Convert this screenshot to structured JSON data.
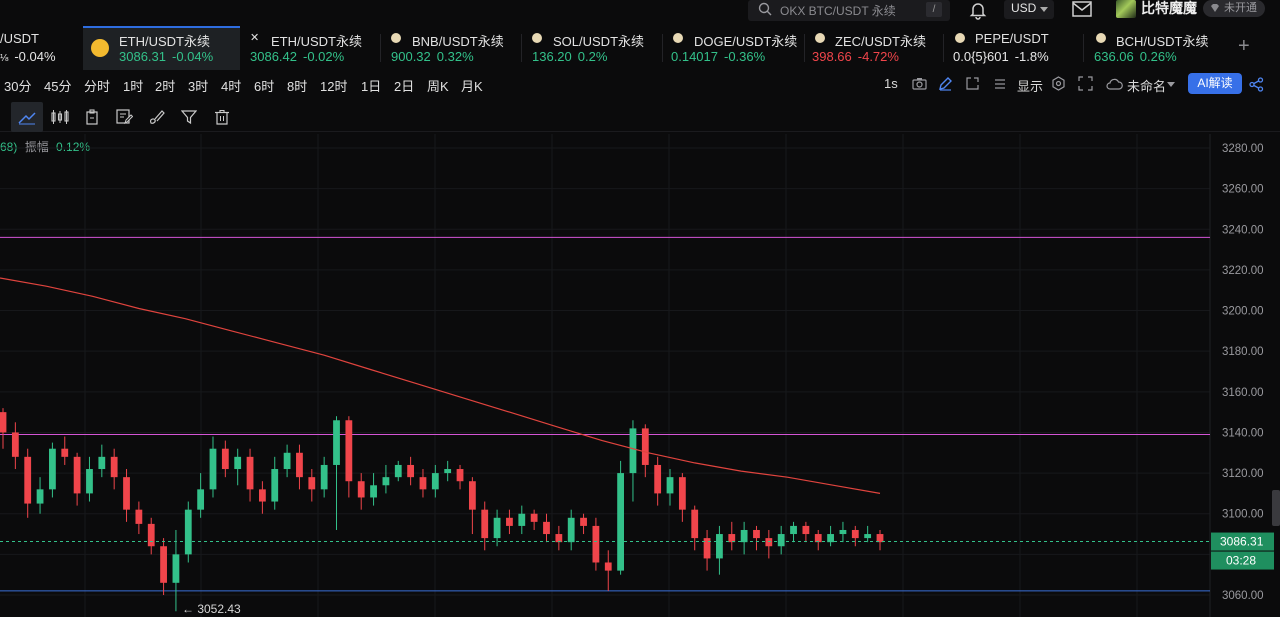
{
  "topbar": {
    "search_placeholder": "OKX BTC/USDT 永续",
    "search_shortcut": "/",
    "currency": "USD",
    "username": "比特魔魔",
    "vip_label": "未开通"
  },
  "tabs": [
    {
      "symbol": "/USDT",
      "price": "",
      "change": "-0.04%",
      "price_dir": "",
      "change_dir": "white"
    },
    {
      "symbol": "ETH/USDT永续",
      "price": "3086.31",
      "change": "-0.04%",
      "price_dir": "up",
      "change_dir": "up",
      "active": true
    },
    {
      "symbol": "ETH/USDT永续",
      "price": "3086.42",
      "change": "-0.02%",
      "price_dir": "up",
      "change_dir": "up"
    },
    {
      "symbol": "BNB/USDT永续",
      "price": "900.32",
      "change": "0.32%",
      "price_dir": "up",
      "change_dir": "up"
    },
    {
      "symbol": "SOL/USDT永续",
      "price": "136.20",
      "change": "0.2%",
      "price_dir": "up",
      "change_dir": "up"
    },
    {
      "symbol": "DOGE/USDT永续",
      "price": "0.14017",
      "change": "-0.36%",
      "price_dir": "up",
      "change_dir": "up"
    },
    {
      "symbol": "ZEC/USDT永续",
      "price": "398.66",
      "change": "-4.72%",
      "price_dir": "down",
      "change_dir": "down"
    },
    {
      "symbol": "PEPE/USDT",
      "price": "0.0{5}601",
      "change": "-1.8%",
      "price_dir": "white",
      "change_dir": "white"
    },
    {
      "symbol": "BCH/USDT永续",
      "price": "636.06",
      "change": "0.26%",
      "price_dir": "up",
      "change_dir": "up"
    }
  ],
  "intervals": [
    "30分",
    "45分",
    "分时",
    "1时",
    "2时",
    "3时",
    "4时",
    "6时",
    "8时",
    "12时",
    "1日",
    "2日",
    "周K",
    "月K"
  ],
  "controls": {
    "speed": "1s",
    "display": "显示",
    "layout_name": "未命名",
    "ai_button": "AI解读"
  },
  "stats": {
    "prefix": "68)",
    "amplitude_label": "振幅",
    "amplitude_value": "0.12%"
  },
  "chart_data": {
    "type": "candlestick",
    "y_ticks": [
      "3280.00",
      "3260.00",
      "3240.00",
      "3220.00",
      "3200.00",
      "3180.00",
      "3160.00",
      "3140.00",
      "3120.00",
      "3100.00",
      "3060.00"
    ],
    "ylim": [
      3052,
      3284
    ],
    "current_price": "3086.31",
    "countdown": "03:28",
    "low_label": "3052.43",
    "horizontal_lines": [
      {
        "value": 3236,
        "color": "#d455d6"
      },
      {
        "value": 3139,
        "color": "#d455d6"
      },
      {
        "value": 3062,
        "color": "#3a6fd8"
      }
    ],
    "moving_average": {
      "color": "#e0443e",
      "values": [
        3216,
        3212,
        3207,
        3201,
        3196,
        3190,
        3184,
        3178,
        3171,
        3164,
        3157,
        3150,
        3143,
        3136,
        3130,
        3125,
        3121,
        3118,
        3114,
        3110
      ]
    },
    "colors": {
      "up": "#33c18a",
      "down": "#f0454b"
    },
    "candles": [
      [
        3150,
        3140,
        3152,
        3132
      ],
      [
        3140,
        3128,
        3145,
        3122
      ],
      [
        3128,
        3105,
        3132,
        3098
      ],
      [
        3105,
        3112,
        3118,
        3100
      ],
      [
        3112,
        3132,
        3135,
        3108
      ],
      [
        3132,
        3128,
        3138,
        3124
      ],
      [
        3128,
        3110,
        3130,
        3104
      ],
      [
        3110,
        3122,
        3128,
        3106
      ],
      [
        3122,
        3128,
        3134,
        3118
      ],
      [
        3128,
        3118,
        3132,
        3112
      ],
      [
        3118,
        3102,
        3122,
        3096
      ],
      [
        3102,
        3095,
        3106,
        3090
      ],
      [
        3095,
        3084,
        3098,
        3080
      ],
      [
        3084,
        3066,
        3088,
        3060
      ],
      [
        3066,
        3080,
        3092,
        3052
      ],
      [
        3080,
        3102,
        3106,
        3076
      ],
      [
        3102,
        3112,
        3120,
        3098
      ],
      [
        3112,
        3132,
        3138,
        3108
      ],
      [
        3132,
        3122,
        3136,
        3118
      ],
      [
        3122,
        3128,
        3132,
        3114
      ],
      [
        3128,
        3112,
        3132,
        3106
      ],
      [
        3112,
        3106,
        3116,
        3100
      ],
      [
        3106,
        3122,
        3128,
        3102
      ],
      [
        3122,
        3130,
        3134,
        3118
      ],
      [
        3130,
        3118,
        3134,
        3112
      ],
      [
        3118,
        3112,
        3122,
        3106
      ],
      [
        3112,
        3124,
        3128,
        3108
      ],
      [
        3124,
        3146,
        3148,
        3092
      ],
      [
        3146,
        3116,
        3148,
        3108
      ],
      [
        3116,
        3108,
        3120,
        3102
      ],
      [
        3108,
        3114,
        3120,
        3104
      ],
      [
        3114,
        3118,
        3124,
        3110
      ],
      [
        3118,
        3124,
        3126,
        3116
      ],
      [
        3124,
        3118,
        3128,
        3114
      ],
      [
        3118,
        3112,
        3122,
        3108
      ],
      [
        3112,
        3120,
        3124,
        3108
      ],
      [
        3120,
        3122,
        3126,
        3116
      ],
      [
        3122,
        3116,
        3124,
        3112
      ],
      [
        3116,
        3102,
        3118,
        3090
      ],
      [
        3102,
        3088,
        3106,
        3082
      ],
      [
        3088,
        3098,
        3102,
        3084
      ],
      [
        3098,
        3094,
        3102,
        3090
      ],
      [
        3094,
        3100,
        3104,
        3090
      ],
      [
        3100,
        3096,
        3102,
        3092
      ],
      [
        3096,
        3090,
        3100,
        3086
      ],
      [
        3090,
        3086,
        3094,
        3082
      ],
      [
        3086,
        3098,
        3102,
        3082
      ],
      [
        3098,
        3094,
        3100,
        3090
      ],
      [
        3094,
        3076,
        3098,
        3072
      ],
      [
        3076,
        3072,
        3082,
        3062
      ],
      [
        3072,
        3120,
        3126,
        3070
      ],
      [
        3120,
        3142,
        3146,
        3106
      ],
      [
        3142,
        3124,
        3144,
        3118
      ],
      [
        3124,
        3110,
        3128,
        3104
      ],
      [
        3110,
        3118,
        3122,
        3104
      ],
      [
        3118,
        3102,
        3120,
        3096
      ],
      [
        3102,
        3088,
        3104,
        3082
      ],
      [
        3088,
        3078,
        3092,
        3072
      ],
      [
        3078,
        3090,
        3094,
        3070
      ],
      [
        3090,
        3086,
        3096,
        3082
      ],
      [
        3086,
        3092,
        3096,
        3080
      ],
      [
        3092,
        3088,
        3094,
        3082
      ],
      [
        3088,
        3084,
        3092,
        3078
      ],
      [
        3084,
        3090,
        3094,
        3080
      ],
      [
        3090,
        3094,
        3096,
        3086
      ],
      [
        3094,
        3090,
        3096,
        3086
      ],
      [
        3090,
        3086,
        3092,
        3082
      ],
      [
        3086,
        3090,
        3094,
        3084
      ],
      [
        3090,
        3092,
        3096,
        3086
      ],
      [
        3092,
        3088,
        3094,
        3084
      ],
      [
        3088,
        3090,
        3094,
        3086
      ],
      [
        3090,
        3086,
        3092,
        3082
      ]
    ]
  }
}
